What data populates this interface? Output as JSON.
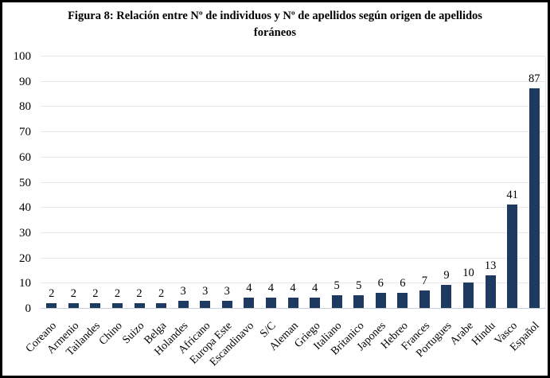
{
  "figure": {
    "background": "#ffffff",
    "border_color": "#000000"
  },
  "chart_data": {
    "type": "bar",
    "title": "Figura 8: Relación entre Nº de individuos  y Nº de apellidos  según origen de apellidos foráneos",
    "categories": [
      "Coreano",
      "Armenio",
      "Tailandes",
      "Chino",
      "Suizo",
      "Belga",
      "Holandes",
      "Africano",
      "Europa Este",
      "Escandinavo",
      "S/C",
      "Aleman",
      "Griego",
      "Italiano",
      "Britanico",
      "Japones",
      "Hebreo",
      "Frances",
      "Portugues",
      "Arabe",
      "Hindu",
      "Vasco",
      "Español"
    ],
    "values": [
      2,
      2,
      2,
      2,
      2,
      2,
      3,
      3,
      3,
      4,
      4,
      4,
      4,
      5,
      5,
      6,
      6,
      7,
      9,
      10,
      13,
      41,
      87
    ],
    "xlabel": "",
    "ylabel": "",
    "ylim": [
      0,
      100
    ],
    "yticks": [
      0,
      10,
      20,
      30,
      40,
      50,
      60,
      70,
      80,
      90,
      100
    ],
    "grid": true,
    "legend": false,
    "value_labels_shown": true,
    "bar_color": "#1f3a60",
    "gridline_color": "#e7e7e7",
    "axis_line_color": "#c6cfd9",
    "text_color": "#000000"
  }
}
